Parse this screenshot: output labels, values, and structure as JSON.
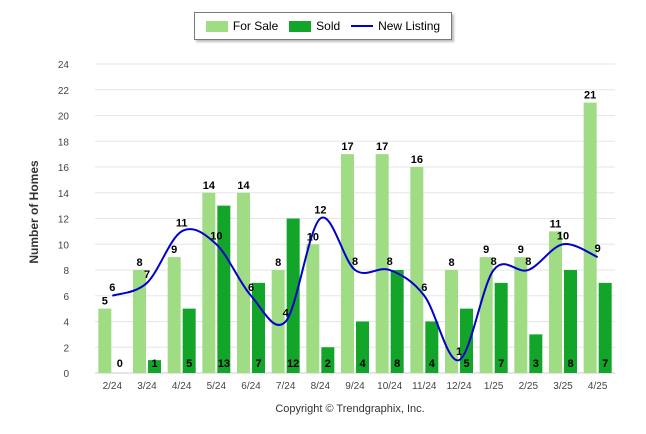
{
  "chart_data": {
    "type": "bar",
    "title": "",
    "xlabel": "",
    "ylabel": "Number of Homes",
    "ylim": [
      0,
      24
    ],
    "yticks": [
      0,
      2,
      4,
      6,
      8,
      10,
      12,
      14,
      16,
      18,
      20,
      22,
      24
    ],
    "grid": true,
    "legend_position": "top-center",
    "categories": [
      "2/24",
      "3/24",
      "4/24",
      "5/24",
      "6/24",
      "7/24",
      "8/24",
      "9/24",
      "10/24",
      "11/24",
      "12/24",
      "1/25",
      "2/25",
      "3/25",
      "4/25"
    ],
    "series": [
      {
        "name": "For Sale",
        "kind": "bar",
        "color": "#a0dc84",
        "values": [
          5,
          8,
          9,
          14,
          14,
          8,
          10,
          17,
          17,
          16,
          8,
          9,
          9,
          11,
          21
        ]
      },
      {
        "name": "Sold",
        "kind": "bar",
        "color": "#12a52a",
        "values": [
          0,
          1,
          5,
          13,
          7,
          12,
          2,
          4,
          8,
          4,
          5,
          7,
          3,
          8,
          7
        ]
      },
      {
        "name": "New Listing",
        "kind": "line",
        "color": "#0000cc",
        "values": [
          6,
          7,
          11,
          10,
          6,
          4,
          12,
          8,
          8,
          6,
          1,
          8,
          8,
          10,
          9
        ]
      }
    ]
  },
  "legend": {
    "for_sale": "For Sale",
    "sold": "Sold",
    "new_listing": "New Listing"
  },
  "footer": {
    "copyright": "Copyright © Trendgraphix, Inc."
  }
}
